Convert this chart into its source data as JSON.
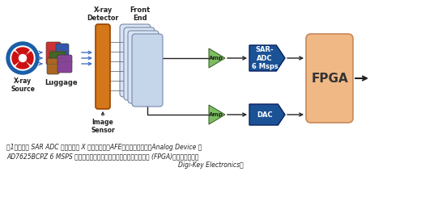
{
  "bg_color": "#ffffff",
  "caption_line1": "图1：该示例 SAR ADC 信号链包括 X 射线探测器、AFE、放大器驱动器、Analog Device 的",
  "caption_line2": "AD7625BCPZ 6 MSPS 转换器，以及用于获得转换结果的数字接收器 (FPGA)。（图片来源：",
  "caption_line3": "Digi-Key Electronics）",
  "xray_source_label": "X-ray\nSource",
  "luggage_label": "Luggage",
  "xray_detector_label": "X-ray\nDetector",
  "front_end_label": "Front\nEnd",
  "image_sensor_label": "Image\nSensor",
  "amp_label": "Amp",
  "amp2_label": "Amp",
  "sar_adc_label": "SAR-\nADC\n6 Msps",
  "dac_label": "DAC",
  "fpga_label": "FPGA",
  "orange_color": "#D4761A",
  "light_orange_color": "#F0B885",
  "dark_blue_color": "#1B5296",
  "green_color": "#7ABF5E",
  "arrow_color": "#4472C4",
  "dark_arrow": "#222222",
  "panel_color": "#D0DCF0",
  "panel_ec": "#8899BB"
}
